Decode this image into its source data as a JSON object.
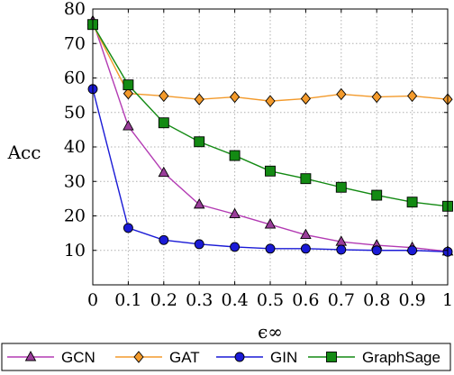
{
  "chart_data": {
    "type": "line",
    "title": "",
    "xlabel": "ϵ∞",
    "ylabel": "Acc",
    "x": [
      0,
      0.1,
      0.2,
      0.3,
      0.4,
      0.5,
      0.6,
      0.7,
      0.8,
      0.9,
      1
    ],
    "x_tick_labels": [
      "0",
      "0.1",
      "0.2",
      "0.3",
      "0.4",
      "0.5",
      "0.6",
      "0.7",
      "0.8",
      "0.9",
      "1"
    ],
    "xlim": [
      0,
      1
    ],
    "ylim": [
      0,
      80
    ],
    "y_ticks": [
      10,
      20,
      30,
      40,
      50,
      60,
      70,
      80
    ],
    "grid": true,
    "legend_position": "bottom",
    "series": [
      {
        "name": "GCN",
        "color": "#b33bb3",
        "fill": "#9a3d9a",
        "marker": "triangle",
        "values": [
          76.5,
          46.0,
          32.5,
          23.3,
          20.5,
          17.5,
          14.5,
          12.5,
          11.5,
          10.8,
          9.7
        ]
      },
      {
        "name": "GAT",
        "color": "#f39a2b",
        "fill": "#f39a2b",
        "marker": "diamond",
        "values": [
          75.5,
          55.5,
          54.8,
          53.8,
          54.5,
          53.3,
          54.0,
          55.3,
          54.5,
          54.8,
          53.8
        ]
      },
      {
        "name": "GIN",
        "color": "#1a1ad6",
        "fill": "#1a1ad6",
        "marker": "circle",
        "values": [
          56.8,
          16.5,
          13.0,
          11.8,
          11.0,
          10.5,
          10.5,
          10.2,
          10.0,
          10.0,
          9.6
        ]
      },
      {
        "name": "GraphSage",
        "color": "#138a13",
        "fill": "#138a13",
        "marker": "square",
        "values": [
          75.5,
          58.0,
          47.0,
          41.5,
          37.5,
          33.0,
          30.8,
          28.3,
          26.0,
          24.0,
          22.8
        ]
      }
    ]
  }
}
